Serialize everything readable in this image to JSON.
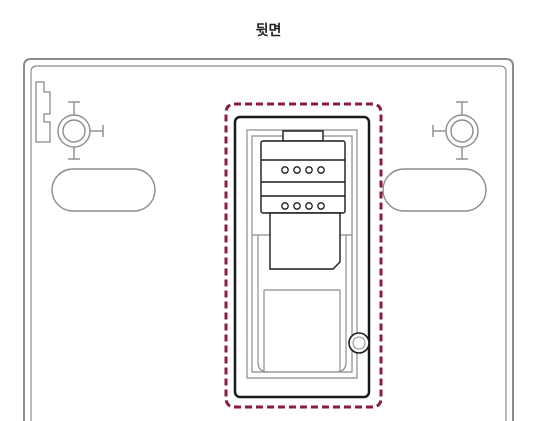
{
  "title": "뒷면",
  "colors": {
    "outline": "#8c8c8c",
    "panel_fill": "#ffffff",
    "dark_outline": "#1a1a1a",
    "highlight": "#8b1c3a"
  },
  "icons": {
    "left_mount": "keyhole-mount-icon",
    "right_mount": "keyhole-mount-icon",
    "tray_contacts": "sim-contacts-icon"
  }
}
